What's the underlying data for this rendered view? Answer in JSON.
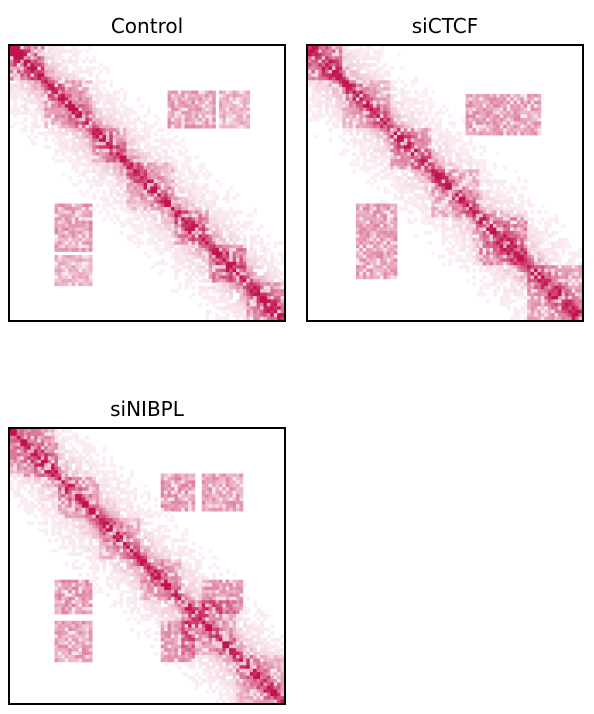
{
  "chart_data": [
    {
      "type": "heatmap",
      "title": "Control",
      "colormap": [
        "#ffffff",
        "#c2134f"
      ],
      "description_free": true,
      "diagonal_strength": 1.0,
      "domains": [
        {
          "start": 0.0,
          "end": 0.12,
          "strength": 0.55
        },
        {
          "start": 0.12,
          "end": 0.3,
          "strength": 0.35
        },
        {
          "start": 0.3,
          "end": 0.42,
          "strength": 0.4
        },
        {
          "start": 0.42,
          "end": 0.6,
          "strength": 0.3
        },
        {
          "start": 0.6,
          "end": 0.72,
          "strength": 0.45
        },
        {
          "start": 0.72,
          "end": 0.86,
          "strength": 0.65
        },
        {
          "start": 0.86,
          "end": 1.0,
          "strength": 0.45
        }
      ],
      "off_diagonal_blocks": [
        {
          "x": [
            0.58,
            0.75
          ],
          "y": [
            0.16,
            0.3
          ],
          "strength": 0.3
        },
        {
          "x": [
            0.16,
            0.3
          ],
          "y": [
            0.58,
            0.75
          ],
          "strength": 0.3
        },
        {
          "x": [
            0.16,
            0.3
          ],
          "y": [
            0.76,
            0.88
          ],
          "strength": 0.25
        },
        {
          "x": [
            0.76,
            0.88
          ],
          "y": [
            0.16,
            0.3
          ],
          "strength": 0.22
        }
      ]
    },
    {
      "type": "heatmap",
      "title": "siCTCF",
      "colormap": [
        "#ffffff",
        "#c2134f"
      ],
      "diagonal_strength": 1.0,
      "domains": [
        {
          "start": 0.0,
          "end": 0.12,
          "strength": 0.55
        },
        {
          "start": 0.12,
          "end": 0.3,
          "strength": 0.3
        },
        {
          "start": 0.3,
          "end": 0.45,
          "strength": 0.4
        },
        {
          "start": 0.45,
          "end": 0.62,
          "strength": 0.3
        },
        {
          "start": 0.62,
          "end": 0.8,
          "strength": 0.4
        },
        {
          "start": 0.8,
          "end": 1.0,
          "strength": 0.4
        }
      ],
      "off_diagonal_blocks": [
        {
          "x": [
            0.58,
            0.85
          ],
          "y": [
            0.18,
            0.32
          ],
          "strength": 0.3
        },
        {
          "x": [
            0.18,
            0.32
          ],
          "y": [
            0.58,
            0.85
          ],
          "strength": 0.3
        },
        {
          "x": [
            0.62,
            0.8
          ],
          "y": [
            0.6,
            0.8
          ],
          "strength": 0.2
        }
      ]
    },
    {
      "type": "heatmap",
      "title": "siNIBPL",
      "colormap": [
        "#ffffff",
        "#c2134f"
      ],
      "diagonal_strength": 1.0,
      "domains": [
        {
          "start": 0.0,
          "end": 0.18,
          "strength": 0.45
        },
        {
          "start": 0.18,
          "end": 0.32,
          "strength": 0.3
        },
        {
          "start": 0.32,
          "end": 0.48,
          "strength": 0.25
        },
        {
          "start": 0.48,
          "end": 0.62,
          "strength": 0.28
        },
        {
          "start": 0.62,
          "end": 0.82,
          "strength": 0.35
        },
        {
          "start": 0.82,
          "end": 1.0,
          "strength": 0.3
        }
      ],
      "off_diagonal_blocks": [
        {
          "x": [
            0.55,
            0.68
          ],
          "y": [
            0.16,
            0.3
          ],
          "strength": 0.32
        },
        {
          "x": [
            0.7,
            0.85
          ],
          "y": [
            0.16,
            0.3
          ],
          "strength": 0.3
        },
        {
          "x": [
            0.16,
            0.3
          ],
          "y": [
            0.55,
            0.68
          ],
          "strength": 0.32
        },
        {
          "x": [
            0.16,
            0.3
          ],
          "y": [
            0.7,
            0.85
          ],
          "strength": 0.3
        },
        {
          "x": [
            0.55,
            0.68
          ],
          "y": [
            0.7,
            0.85
          ],
          "strength": 0.28
        },
        {
          "x": [
            0.7,
            0.85
          ],
          "y": [
            0.55,
            0.68
          ],
          "strength": 0.28
        }
      ]
    }
  ]
}
